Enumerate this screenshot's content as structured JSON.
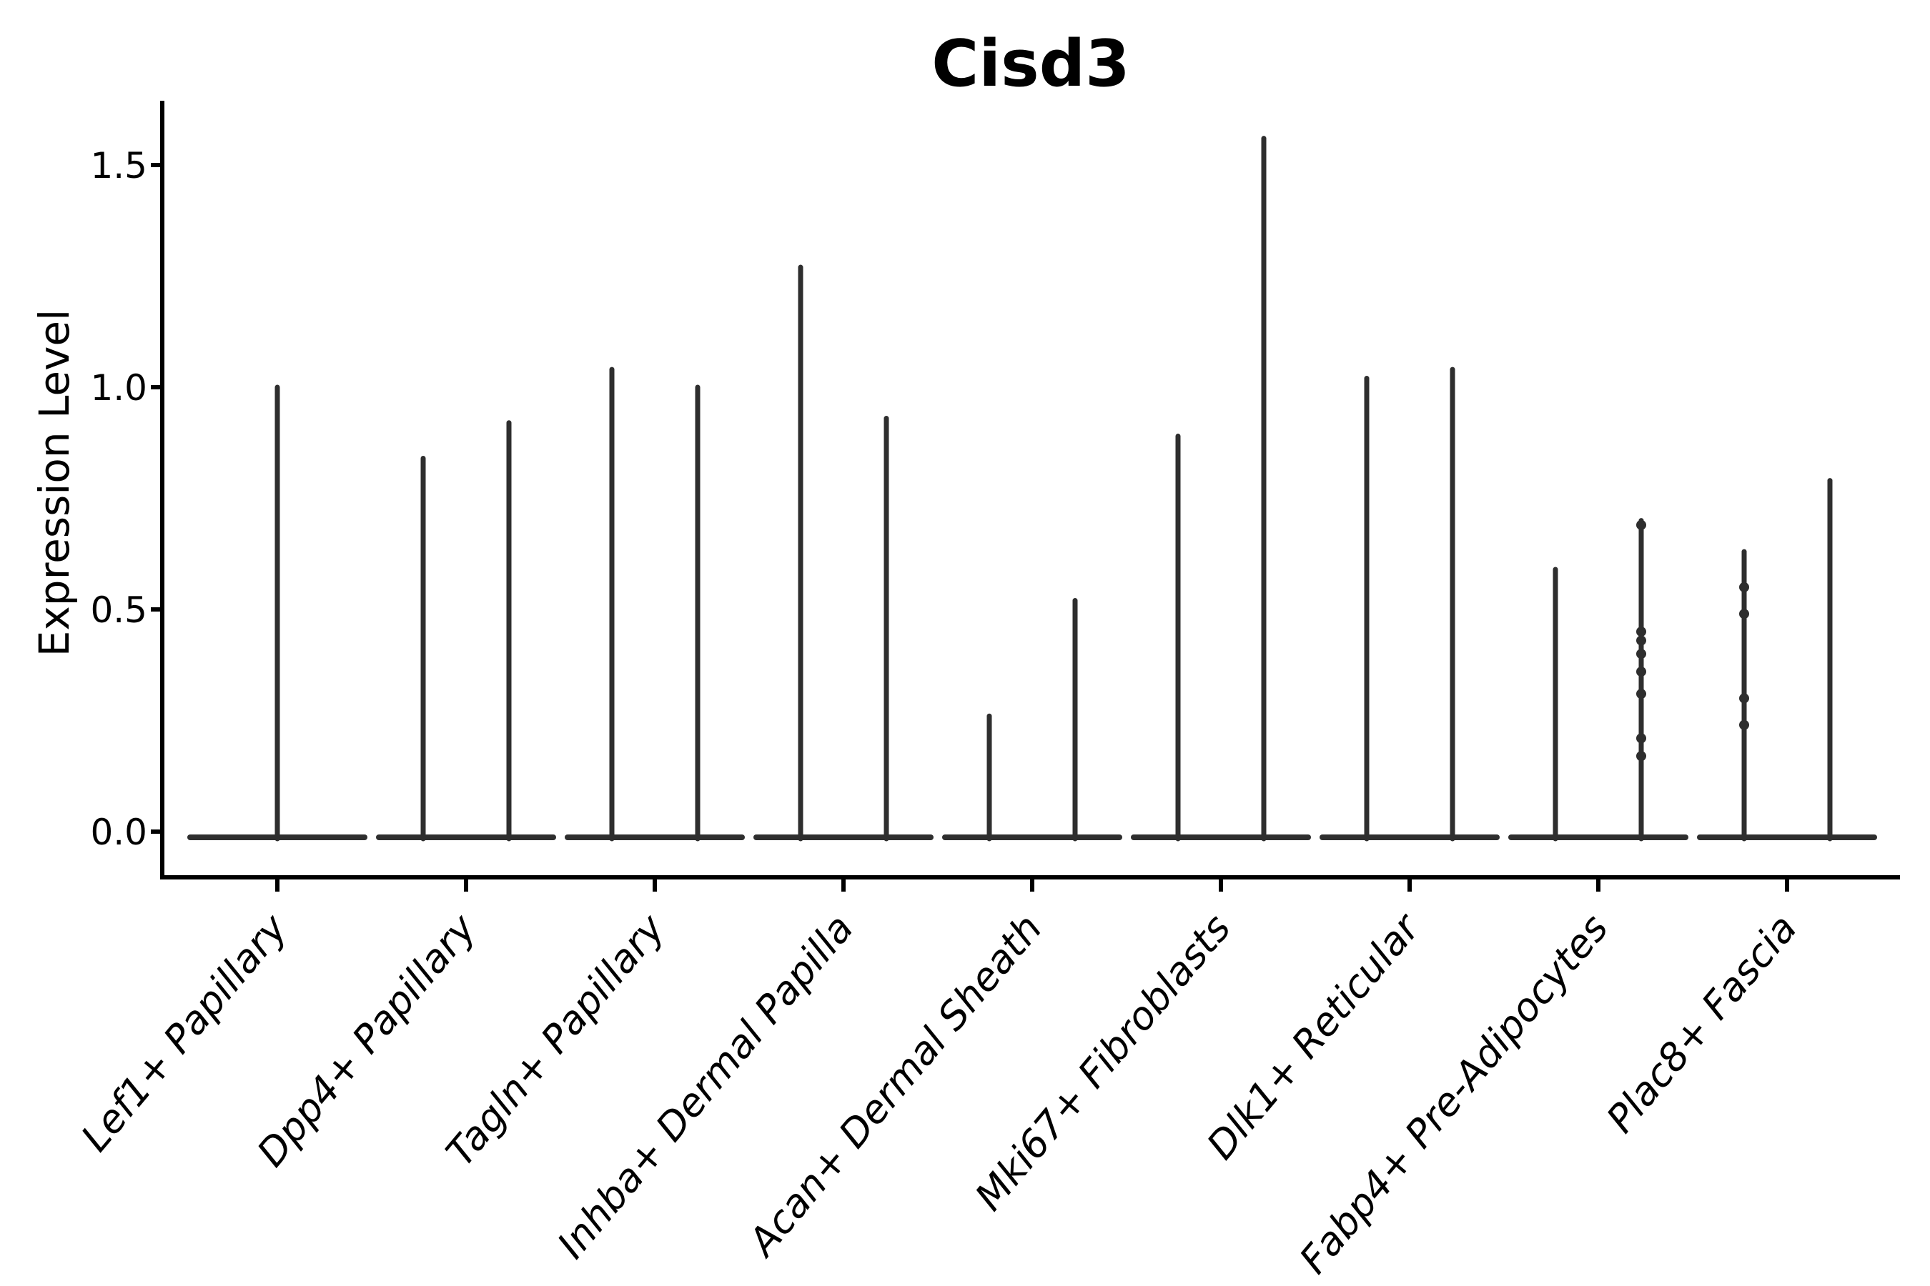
{
  "title": "Cisd3",
  "ylabel": "Expression Level",
  "chart_data": {
    "type": "violin",
    "title": "Cisd3",
    "xlabel": "",
    "ylabel": "Expression Level",
    "yticks": [
      0.0,
      0.5,
      1.0,
      1.5
    ],
    "ytick_labels": [
      "0.0",
      "0.5",
      "1.0",
      "1.5"
    ],
    "ylim": [
      -0.1,
      1.65
    ],
    "grid": false,
    "legend": null,
    "categories": [
      "Lef1+ Papillary",
      "Dpp4+ Papillary",
      "Tagln+ Papillary",
      "Inhba+ Dermal Papilla",
      "Acan+ Dermal Sheath",
      "Mki67+ Fibroblasts",
      "Dlk1+ Reticular",
      "Fabp4+ Pre-Adipocytes",
      "Plac8+ Fascia"
    ],
    "description": "Needle-thin violins with a wide flat base at expression 0; most categories show two violins (two thin spikes), the first category shows a single centered spike.",
    "baseline_value": 0.0,
    "violins": [
      {
        "category": "Lef1+ Papillary",
        "spikes": [
          {
            "position": "center",
            "max": 1.0
          }
        ]
      },
      {
        "category": "Dpp4+ Papillary",
        "spikes": [
          {
            "position": "left",
            "max": 0.84
          },
          {
            "position": "right",
            "max": 0.92
          }
        ]
      },
      {
        "category": "Tagln+ Papillary",
        "spikes": [
          {
            "position": "left",
            "max": 1.04
          },
          {
            "position": "right",
            "max": 1.0
          }
        ]
      },
      {
        "category": "Inhba+ Dermal Papilla",
        "spikes": [
          {
            "position": "left",
            "max": 1.27
          },
          {
            "position": "right",
            "max": 0.93
          }
        ]
      },
      {
        "category": "Acan+ Dermal Sheath",
        "spikes": [
          {
            "position": "left",
            "max": 0.26
          },
          {
            "position": "right",
            "max": 0.52
          }
        ]
      },
      {
        "category": "Mki67+ Fibroblasts",
        "spikes": [
          {
            "position": "left",
            "max": 0.89
          },
          {
            "position": "right",
            "max": 1.56
          }
        ]
      },
      {
        "category": "Dlk1+ Reticular",
        "spikes": [
          {
            "position": "left",
            "max": 1.02
          },
          {
            "position": "right",
            "max": 1.04
          }
        ]
      },
      {
        "category": "Fabp4+ Pre-Adipocytes",
        "spikes": [
          {
            "position": "left",
            "max": 0.59
          },
          {
            "position": "right",
            "max": 0.7,
            "points": [
              0.69,
              0.45,
              0.43,
              0.4,
              0.36,
              0.31,
              0.21,
              0.17
            ]
          }
        ]
      },
      {
        "category": "Plac8+ Fascia",
        "spikes": [
          {
            "position": "left",
            "max": 0.63,
            "points": [
              0.55,
              0.49,
              0.3,
              0.24
            ]
          },
          {
            "position": "right",
            "max": 0.79
          }
        ]
      }
    ],
    "colors": {
      "violin_stroke": "#2e2e2e",
      "axis": "#000000",
      "text": "#000000",
      "background": "#ffffff"
    }
  }
}
